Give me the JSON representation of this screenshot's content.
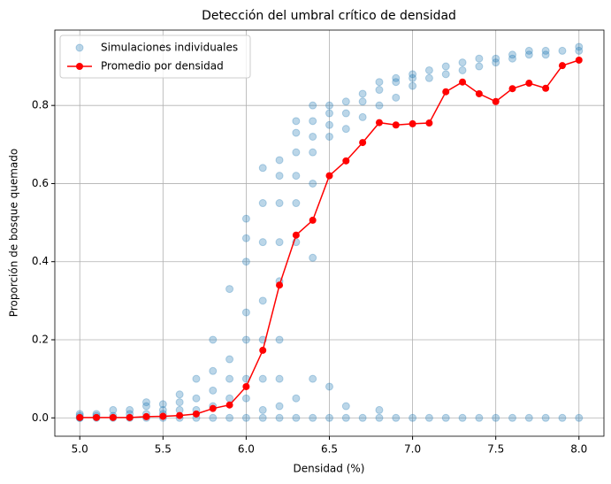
{
  "chart_data": {
    "type": "scatter",
    "title": "Detección del umbral crítico de densidad",
    "x_label": "Densidad (%)",
    "y_label": "Proporción de bosque quemado",
    "xlim": [
      4.85,
      8.15
    ],
    "ylim": [
      -0.047,
      0.993
    ],
    "xticks": [
      {
        "value": 5,
        "label": "5.0"
      },
      5.5,
      {
        "value": 6,
        "label": "6.0"
      },
      6.5,
      {
        "value": 7,
        "label": "7.0"
      },
      7.5,
      {
        "value": 8,
        "label": "8.0"
      }
    ],
    "yticks": [
      {
        "value": 0,
        "label": "0.0"
      },
      0.2,
      0.4,
      0.6,
      0.8
    ],
    "grid": true,
    "legend": "upper-left",
    "series": [
      {
        "name": "Simulaciones individuales",
        "type": "scatter",
        "color": "#1f77b4",
        "alpha": 0.3,
        "x": [
          5.0,
          5.0,
          5.0,
          5.0,
          5.1,
          5.1,
          5.1,
          5.2,
          5.2,
          5.2,
          5.3,
          5.3,
          5.3,
          5.4,
          5.4,
          5.4,
          5.4,
          5.5,
          5.5,
          5.5,
          5.5,
          5.6,
          5.6,
          5.6,
          5.6,
          5.7,
          5.7,
          5.7,
          5.7,
          5.8,
          5.8,
          5.8,
          5.8,
          5.8,
          5.9,
          5.9,
          5.9,
          5.9,
          5.9,
          6.0,
          6.0,
          6.0,
          6.0,
          6.0,
          6.0,
          6.0,
          6.0,
          6.1,
          6.1,
          6.1,
          6.1,
          6.1,
          6.1,
          6.1,
          6.1,
          6.2,
          6.2,
          6.2,
          6.2,
          6.2,
          6.2,
          6.2,
          6.2,
          6.2,
          6.3,
          6.3,
          6.3,
          6.3,
          6.3,
          6.3,
          6.3,
          6.3,
          6.4,
          6.4,
          6.4,
          6.4,
          6.4,
          6.4,
          6.4,
          6.4,
          6.5,
          6.5,
          6.5,
          6.5,
          6.5,
          6.5,
          6.6,
          6.6,
          6.6,
          6.6,
          6.6,
          6.7,
          6.7,
          6.7,
          6.7,
          6.8,
          6.8,
          6.8,
          6.8,
          6.8,
          6.9,
          6.9,
          6.9,
          6.9,
          7.0,
          7.0,
          7.0,
          7.0,
          7.1,
          7.1,
          7.1,
          7.2,
          7.2,
          7.2,
          7.3,
          7.3,
          7.3,
          7.4,
          7.4,
          7.4,
          7.5,
          7.5,
          7.5,
          7.6,
          7.6,
          7.6,
          7.7,
          7.7,
          7.7,
          7.8,
          7.8,
          7.8,
          7.9,
          7.9,
          8.0,
          8.0,
          8.0
        ],
        "values": [
          0,
          0,
          0.005,
          0.01,
          0,
          0.005,
          0.01,
          0,
          0.005,
          0.02,
          0,
          0.01,
          0.02,
          0,
          0.01,
          0.03,
          0.04,
          0,
          0.01,
          0.02,
          0.035,
          0,
          0.02,
          0.04,
          0.06,
          0,
          0.02,
          0.05,
          0.1,
          0,
          0.03,
          0.07,
          0.12,
          0.2,
          0,
          0.05,
          0.1,
          0.15,
          0.33,
          0,
          0.05,
          0.1,
          0.2,
          0.27,
          0.4,
          0.46,
          0.51,
          0,
          0.02,
          0.1,
          0.2,
          0.3,
          0.45,
          0.55,
          0.64,
          0,
          0.03,
          0.1,
          0.2,
          0.35,
          0.45,
          0.55,
          0.62,
          0.66,
          0,
          0.05,
          0.45,
          0.55,
          0.62,
          0.68,
          0.73,
          0.76,
          0,
          0.1,
          0.41,
          0.6,
          0.68,
          0.72,
          0.76,
          0.8,
          0,
          0.08,
          0.72,
          0.75,
          0.78,
          0.8,
          0,
          0.03,
          0.74,
          0.78,
          0.81,
          0,
          0.77,
          0.81,
          0.83,
          0,
          0.02,
          0.8,
          0.84,
          0.86,
          0,
          0.82,
          0.86,
          0.87,
          0,
          0.85,
          0.87,
          0.88,
          0,
          0.87,
          0.89,
          0,
          0.88,
          0.9,
          0,
          0.89,
          0.91,
          0,
          0.9,
          0.92,
          0,
          0.91,
          0.92,
          0,
          0.92,
          0.93,
          0,
          0.93,
          0.94,
          0,
          0.93,
          0.94,
          0,
          0.94,
          0,
          0.94,
          0.95
        ]
      },
      {
        "name": "Promedio por densidad",
        "type": "line",
        "color": "#ff0000",
        "x": [
          5.0,
          5.1,
          5.2,
          5.3,
          5.4,
          5.5,
          5.6,
          5.7,
          5.8,
          5.9,
          6.0,
          6.1,
          6.2,
          6.3,
          6.4,
          6.5,
          6.6,
          6.7,
          6.8,
          6.9,
          7.0,
          7.1,
          7.2,
          7.3,
          7.4,
          7.5,
          7.6,
          7.7,
          7.8,
          7.9,
          8.0
        ],
        "values": [
          0.001,
          0.001,
          0.001,
          0.001,
          0.003,
          0.004,
          0.006,
          0.01,
          0.024,
          0.033,
          0.08,
          0.173,
          0.34,
          0.468,
          0.506,
          0.62,
          0.658,
          0.705,
          0.756,
          0.75,
          0.753,
          0.755,
          0.835,
          0.86,
          0.83,
          0.81,
          0.843,
          0.857,
          0.844,
          0.902,
          0.916
        ]
      }
    ]
  }
}
